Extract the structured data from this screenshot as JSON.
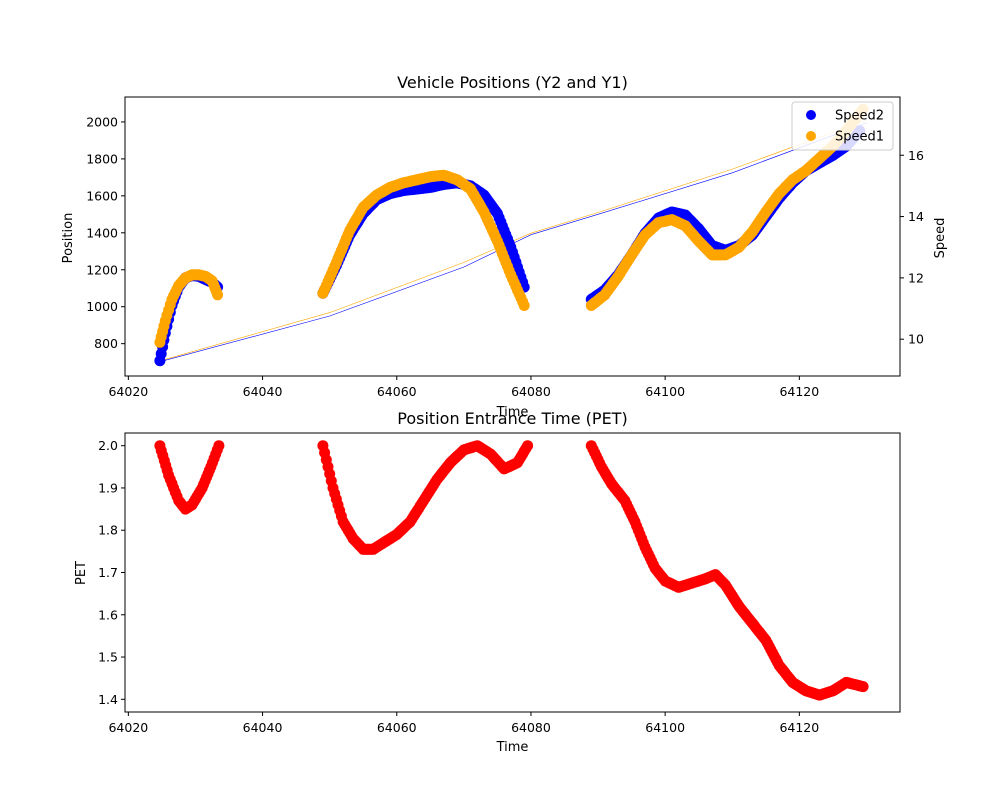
{
  "chart_data": [
    {
      "type": "scatter",
      "title": "Vehicle Positions (Y2 and Y1)",
      "xlabel": "Time",
      "ylabel": "Position",
      "y2label": "Speed",
      "xlim": [
        64019.5,
        64135
      ],
      "ylim": [
        625,
        2135
      ],
      "y2lim": [
        8.8,
        17.9
      ],
      "xticks": [
        64020,
        64040,
        64060,
        64080,
        64100,
        64120
      ],
      "yticks": [
        800,
        1000,
        1200,
        1400,
        1600,
        1800,
        2000
      ],
      "y2ticks": [
        10,
        12,
        14,
        16
      ],
      "legend": {
        "placement": "top-right",
        "entries": [
          "Speed2",
          "Speed1"
        ]
      },
      "grid": false,
      "colors": {
        "y2": "#0000ff",
        "y1": "#ffa500",
        "speed2": "#0000ff",
        "speed1": "#ffa500"
      },
      "position_series": [
        {
          "key": "y2",
          "color": "#0000ff",
          "x": [
            64025,
            64050,
            64070,
            64080,
            64090,
            64110,
            64130
          ],
          "y": [
            705,
            950,
            1215,
            1390,
            1500,
            1725,
            1995
          ]
        },
        {
          "key": "y1",
          "color": "#ffa500",
          "x": [
            64025,
            64050,
            64070,
            64080,
            64090,
            64110,
            64130
          ],
          "y": [
            710,
            968,
            1240,
            1398,
            1510,
            1745,
            2010
          ]
        }
      ],
      "series": [
        {
          "name": "Speed2",
          "axis": "right",
          "color": "#0000ff",
          "marker_size": 5.5,
          "x": [
            64024.7,
            64025.5,
            64026.5,
            64027.5,
            64028.5,
            64029.5,
            64030.5,
            64031.5,
            64032.5,
            64033.3,
            null,
            64049,
            64051,
            64053,
            64055,
            64057,
            64059,
            64061,
            64063,
            64065,
            64067,
            64069,
            64071,
            64073,
            64075,
            64077,
            64079,
            null,
            64089,
            64091,
            64093,
            64095,
            64097,
            64099,
            64101,
            64103,
            64105,
            64107,
            64109,
            64111,
            64113,
            64115,
            64117,
            64119,
            64121,
            64123,
            64125,
            64127,
            64129
          ],
          "y": [
            9.3,
            10.2,
            11.1,
            11.7,
            12.0,
            12.08,
            12.05,
            11.95,
            11.85,
            11.7,
            null,
            11.5,
            12.4,
            13.4,
            14.1,
            14.55,
            14.75,
            14.85,
            14.9,
            14.95,
            15.05,
            15.1,
            15.0,
            14.7,
            14.1,
            13.0,
            11.7,
            null,
            11.3,
            11.6,
            12.1,
            12.75,
            13.45,
            13.95,
            14.15,
            14.05,
            13.6,
            13.05,
            12.9,
            13.05,
            13.4,
            14.0,
            14.6,
            15.1,
            15.5,
            15.75,
            16.0,
            16.3,
            16.8
          ]
        },
        {
          "name": "Speed1",
          "axis": "right",
          "color": "#ffa500",
          "marker_size": 5.5,
          "x": [
            64024.7,
            64025.5,
            64026.5,
            64027.5,
            64028.5,
            64029.5,
            64030.5,
            64031.5,
            64032.5,
            64033.3,
            null,
            64049,
            64051,
            64053,
            64055,
            64057,
            64059,
            64061,
            64063,
            64065,
            64067,
            64069,
            64071,
            64073,
            64075,
            64077,
            64079,
            null,
            64089,
            64091,
            64093,
            64095,
            64097,
            64099,
            64101,
            64103,
            64105,
            64107,
            64109,
            64111,
            64113,
            64115,
            64117,
            64119,
            64121,
            64123,
            64125,
            64127,
            64129.5
          ],
          "y": [
            9.9,
            10.6,
            11.3,
            11.75,
            12.0,
            12.1,
            12.1,
            12.05,
            11.9,
            11.45,
            null,
            11.5,
            12.5,
            13.55,
            14.3,
            14.7,
            14.95,
            15.1,
            15.2,
            15.3,
            15.35,
            15.2,
            14.9,
            14.15,
            13.2,
            12.1,
            11.1,
            null,
            11.1,
            11.45,
            12.05,
            12.75,
            13.4,
            13.8,
            13.9,
            13.7,
            13.2,
            12.75,
            12.75,
            13.0,
            13.5,
            14.15,
            14.75,
            15.2,
            15.5,
            15.9,
            16.3,
            16.8,
            17.5
          ]
        }
      ]
    },
    {
      "type": "scatter",
      "title": "Position Entrance Time (PET)",
      "xlabel": "Time",
      "ylabel": "PET",
      "xlim": [
        64019.5,
        64135
      ],
      "ylim": [
        1.37,
        2.03
      ],
      "xticks": [
        64020,
        64040,
        64060,
        64080,
        64100,
        64120
      ],
      "yticks": [
        1.4,
        1.5,
        1.6,
        1.7,
        1.8,
        1.9,
        2.0
      ],
      "grid": false,
      "series": [
        {
          "color": "#ff0000",
          "marker_size": 5.5,
          "x": [
            64024.7,
            64026,
            64027.5,
            64028.5,
            64029.5,
            64031,
            64032.3,
            64033.5,
            null,
            64049,
            64050.5,
            64052,
            64053.5,
            64055,
            64056.5,
            64058,
            64060,
            64062,
            64064,
            64066,
            64068,
            64070,
            64072,
            64074,
            64076,
            64078,
            64079.5,
            null,
            64089,
            64090.5,
            64092,
            64094,
            64095.5,
            64097,
            64098.5,
            64100,
            64102,
            64104,
            64106,
            64107.5,
            64109,
            64111,
            64113,
            64115,
            64117,
            64119,
            64121,
            64123,
            64125,
            64127,
            64129.5
          ],
          "y": [
            2.0,
            1.93,
            1.87,
            1.85,
            1.86,
            1.9,
            1.95,
            2.0,
            null,
            2.0,
            1.9,
            1.82,
            1.78,
            1.755,
            1.755,
            1.77,
            1.79,
            1.82,
            1.87,
            1.92,
            1.96,
            1.99,
            2.0,
            1.98,
            1.945,
            1.96,
            2.0,
            null,
            2.0,
            1.95,
            1.91,
            1.87,
            1.82,
            1.76,
            1.71,
            1.68,
            1.665,
            1.675,
            1.685,
            1.695,
            1.67,
            1.62,
            1.58,
            1.54,
            1.48,
            1.44,
            1.42,
            1.41,
            1.42,
            1.44,
            1.43
          ]
        }
      ]
    }
  ]
}
